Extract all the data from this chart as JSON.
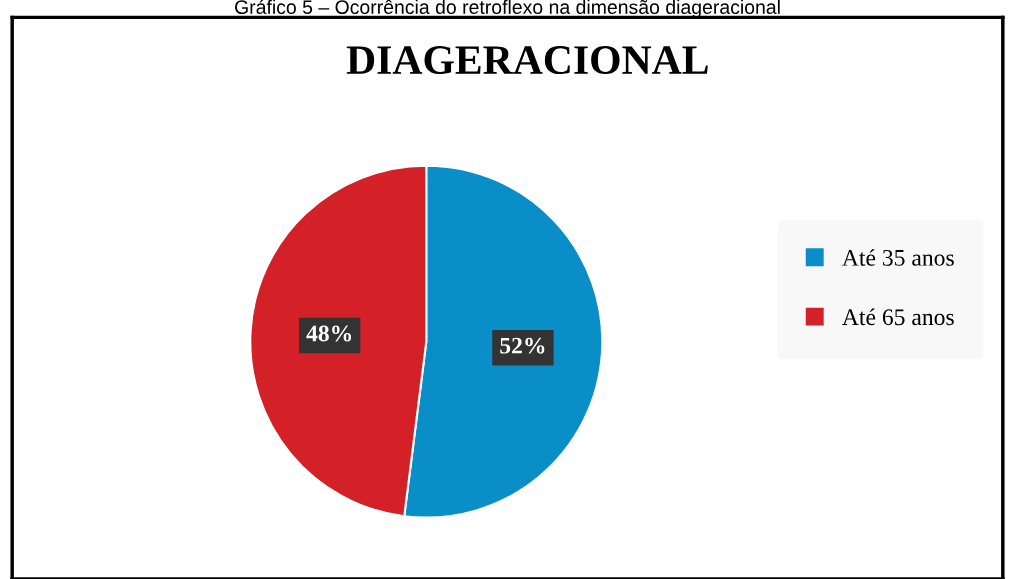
{
  "chart_data": {
    "type": "pie",
    "title": "DIAGERACIONAL",
    "annotations": [
      "Gráfico 5 – Ocorrência do retroflexo na dimensão diageracional"
    ],
    "categories": [
      "Até 35 anos",
      "Até 65 anos"
    ],
    "values": [
      52,
      48
    ],
    "colors": [
      "#0a8ec8",
      "#d42027"
    ],
    "value_labels": [
      "52%",
      "48%"
    ],
    "legend": "right"
  }
}
